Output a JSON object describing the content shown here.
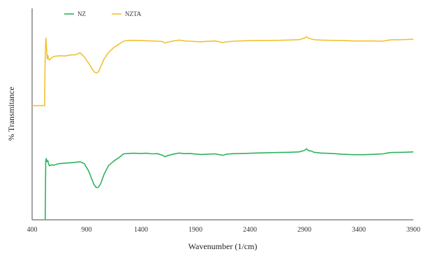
{
  "chart_data": {
    "type": "line",
    "title": "",
    "xlabel": "Wavenumber (1/cm)",
    "ylabel": "% Transmitance",
    "xlim": [
      400,
      3900
    ],
    "ylim": [
      0,
      100
    ],
    "x_ticks": [
      400,
      900,
      1400,
      1900,
      2400,
      2900,
      3400,
      3900
    ],
    "grid": false,
    "legend_position": "top-left",
    "series": [
      {
        "name": "NZ",
        "color": "#2db35d",
        "points": [
          [
            520,
            0
          ],
          [
            525,
            28
          ],
          [
            530,
            29
          ],
          [
            535,
            27.5
          ],
          [
            545,
            28
          ],
          [
            552,
            26.2
          ],
          [
            560,
            25.5
          ],
          [
            575,
            26
          ],
          [
            600,
            25.8
          ],
          [
            640,
            26.5
          ],
          [
            700,
            26.8
          ],
          [
            760,
            27
          ],
          [
            800,
            27.2
          ],
          [
            840,
            27.5
          ],
          [
            880,
            26.5
          ],
          [
            920,
            23
          ],
          [
            950,
            19
          ],
          [
            970,
            16.5
          ],
          [
            990,
            15.2
          ],
          [
            1010,
            15.5
          ],
          [
            1030,
            17.2
          ],
          [
            1060,
            21.5
          ],
          [
            1100,
            25.5
          ],
          [
            1150,
            27.8
          ],
          [
            1200,
            29.5
          ],
          [
            1240,
            31.2
          ],
          [
            1280,
            31.4
          ],
          [
            1330,
            31.5
          ],
          [
            1400,
            31.4
          ],
          [
            1450,
            31.5
          ],
          [
            1500,
            31.2
          ],
          [
            1550,
            31.3
          ],
          [
            1600,
            30.5
          ],
          [
            1620,
            29.8
          ],
          [
            1640,
            30.3
          ],
          [
            1700,
            31.1
          ],
          [
            1750,
            31.6
          ],
          [
            1800,
            31.3
          ],
          [
            1850,
            31.4
          ],
          [
            1900,
            31.1
          ],
          [
            1950,
            30.9
          ],
          [
            2000,
            31
          ],
          [
            2080,
            31.2
          ],
          [
            2120,
            30.8
          ],
          [
            2150,
            30.5
          ],
          [
            2180,
            31
          ],
          [
            2250,
            31.3
          ],
          [
            2350,
            31.4
          ],
          [
            2450,
            31.6
          ],
          [
            2550,
            31.7
          ],
          [
            2650,
            31.8
          ],
          [
            2750,
            31.9
          ],
          [
            2850,
            32.1
          ],
          [
            2900,
            32.8
          ],
          [
            2920,
            33.6
          ],
          [
            2940,
            32.6
          ],
          [
            2960,
            32.6
          ],
          [
            2990,
            31.9
          ],
          [
            3050,
            31.6
          ],
          [
            3150,
            31.4
          ],
          [
            3250,
            31
          ],
          [
            3350,
            30.8
          ],
          [
            3450,
            30.8
          ],
          [
            3550,
            31
          ],
          [
            3620,
            31.2
          ],
          [
            3660,
            31.6
          ],
          [
            3700,
            31.8
          ],
          [
            3800,
            31.9
          ],
          [
            3900,
            32.1
          ]
        ]
      },
      {
        "name": "NZTA",
        "color": "#f1c232",
        "points": [
          [
            400,
            54
          ],
          [
            515,
            54
          ],
          [
            518,
            71
          ],
          [
            522,
            80
          ],
          [
            526,
            86
          ],
          [
            530,
            83
          ],
          [
            535,
            79
          ],
          [
            540,
            76
          ],
          [
            545,
            77.8
          ],
          [
            552,
            76
          ],
          [
            560,
            75.5
          ],
          [
            575,
            76.5
          ],
          [
            600,
            77.3
          ],
          [
            650,
            77.6
          ],
          [
            700,
            77.5
          ],
          [
            760,
            78
          ],
          [
            800,
            78.1
          ],
          [
            840,
            79
          ],
          [
            880,
            77
          ],
          [
            920,
            74
          ],
          [
            950,
            71.5
          ],
          [
            970,
            70
          ],
          [
            990,
            69.4
          ],
          [
            1010,
            70
          ],
          [
            1030,
            72.5
          ],
          [
            1060,
            76
          ],
          [
            1100,
            79
          ],
          [
            1150,
            81.5
          ],
          [
            1200,
            83.2
          ],
          [
            1240,
            84.5
          ],
          [
            1280,
            84.8
          ],
          [
            1330,
            84.9
          ],
          [
            1400,
            84.8
          ],
          [
            1450,
            84.7
          ],
          [
            1500,
            84.6
          ],
          [
            1550,
            84.5
          ],
          [
            1600,
            84.3
          ],
          [
            1620,
            83.6
          ],
          [
            1640,
            84
          ],
          [
            1700,
            84.6
          ],
          [
            1750,
            85
          ],
          [
            1800,
            84.6
          ],
          [
            1850,
            84.5
          ],
          [
            1900,
            84.3
          ],
          [
            1950,
            84.2
          ],
          [
            2000,
            84.4
          ],
          [
            2080,
            84.6
          ],
          [
            2120,
            84.2
          ],
          [
            2150,
            83.8
          ],
          [
            2180,
            84.2
          ],
          [
            2250,
            84.5
          ],
          [
            2350,
            84.7
          ],
          [
            2450,
            84.8
          ],
          [
            2550,
            84.8
          ],
          [
            2650,
            84.9
          ],
          [
            2750,
            85
          ],
          [
            2850,
            85.2
          ],
          [
            2880,
            85.6
          ],
          [
            2900,
            85.9
          ],
          [
            2920,
            86.6
          ],
          [
            2940,
            85.8
          ],
          [
            2960,
            85.6
          ],
          [
            2990,
            85.2
          ],
          [
            3050,
            85
          ],
          [
            3150,
            84.9
          ],
          [
            3250,
            84.8
          ],
          [
            3350,
            84.6
          ],
          [
            3450,
            84.6
          ],
          [
            3550,
            84.6
          ],
          [
            3620,
            84.5
          ],
          [
            3660,
            84.9
          ],
          [
            3700,
            85.1
          ],
          [
            3800,
            85.2
          ],
          [
            3900,
            85.4
          ]
        ]
      }
    ]
  }
}
